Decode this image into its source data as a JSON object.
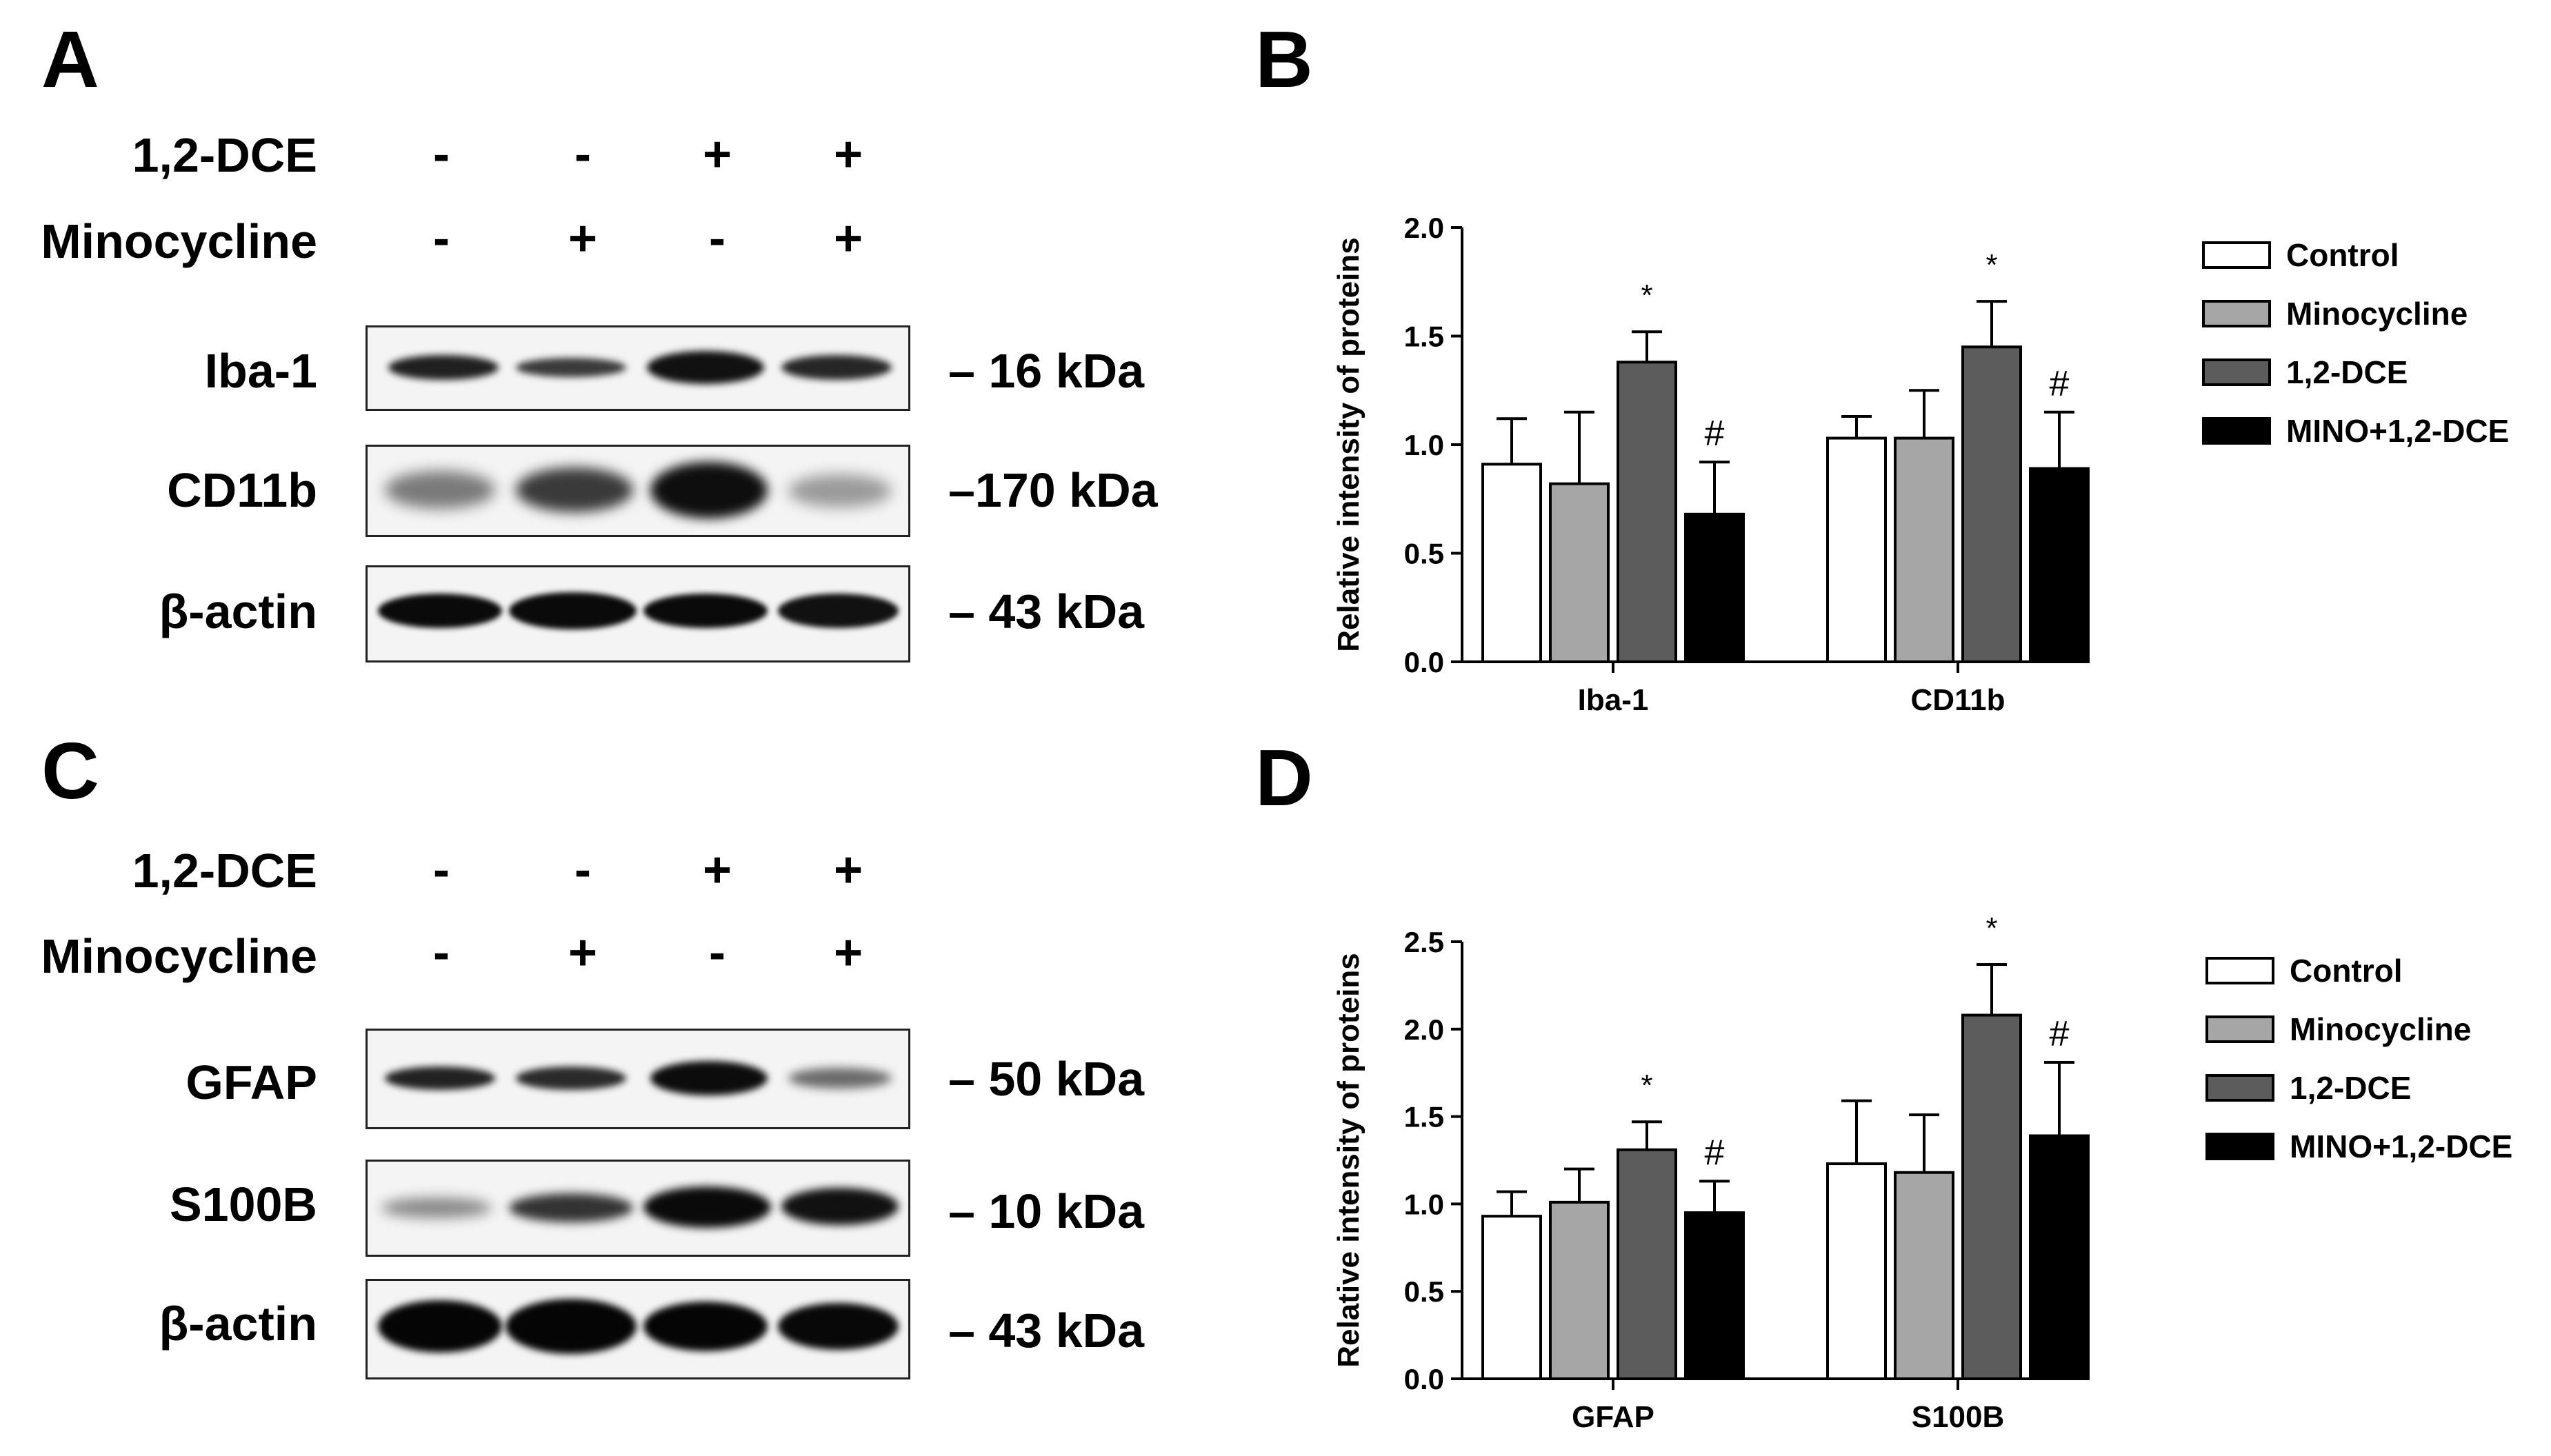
{
  "panels": {
    "A": {
      "letter": "A",
      "treatments": [
        {
          "label": "1,2-DCE",
          "signs": [
            "-",
            "-",
            "+",
            "+"
          ]
        },
        {
          "label": "Minocycline",
          "signs": [
            "-",
            "+",
            "-",
            "+"
          ]
        }
      ],
      "blots": [
        {
          "protein": "Iba-1",
          "size": "– 16 kDa"
        },
        {
          "protein": "CD11b",
          "size": "–170 kDa"
        },
        {
          "protein": "β-actin",
          "size": "– 43 kDa"
        }
      ]
    },
    "B": {
      "letter": "B"
    },
    "C": {
      "letter": "C",
      "treatments": [
        {
          "label": "1,2-DCE",
          "signs": [
            "-",
            "-",
            "+",
            "+"
          ]
        },
        {
          "label": "Minocycline",
          "signs": [
            "-",
            "+",
            "-",
            "+"
          ]
        }
      ],
      "blots": [
        {
          "protein": "GFAP",
          "size": "– 50 kDa"
        },
        {
          "protein": "S100B",
          "size": "– 10 kDa"
        },
        {
          "protein": "β-actin",
          "size": "– 43 kDa"
        }
      ]
    },
    "D": {
      "letter": "D"
    }
  },
  "colors": {
    "Control": "#ffffff",
    "Minocycline": "#a6a6a6",
    "1,2-DCE": "#5c5c5c",
    "MINO+1,2-DCE": "#000000"
  },
  "chart_data": [
    {
      "panel": "B",
      "type": "bar",
      "ylabel": "Relative intensity of proteins",
      "xlabel": "",
      "ylim": [
        0,
        2.0
      ],
      "yticks": [
        "0.0",
        "0.5",
        "1.0",
        "1.5",
        "2.0"
      ],
      "categories": [
        "Iba-1",
        "CD11b"
      ],
      "legend": "right",
      "series": [
        {
          "name": "Control",
          "values": [
            0.91,
            1.03
          ],
          "errors": [
            0.21,
            0.1
          ]
        },
        {
          "name": "Minocycline",
          "values": [
            0.82,
            1.03
          ],
          "errors": [
            0.33,
            0.22
          ]
        },
        {
          "name": "1,2-DCE",
          "values": [
            1.38,
            1.45
          ],
          "errors": [
            0.14,
            0.21
          ]
        },
        {
          "name": "MINO+1,2-DCE",
          "values": [
            0.68,
            0.89
          ],
          "errors": [
            0.24,
            0.26
          ]
        }
      ],
      "annotations": [
        {
          "category": "Iba-1",
          "series": "1,2-DCE",
          "text": "*"
        },
        {
          "category": "Iba-1",
          "series": "MINO+1,2-DCE",
          "text": "#"
        },
        {
          "category": "CD11b",
          "series": "1,2-DCE",
          "text": "*"
        },
        {
          "category": "CD11b",
          "series": "MINO+1,2-DCE",
          "text": "#"
        }
      ]
    },
    {
      "panel": "D",
      "type": "bar",
      "ylabel": "Relative intensity of proteins",
      "xlabel": "",
      "ylim": [
        0,
        2.5
      ],
      "yticks": [
        "0.0",
        "0.5",
        "1.0",
        "1.5",
        "2.0",
        "2.5"
      ],
      "categories": [
        "GFAP",
        "S100B"
      ],
      "legend": "right",
      "series": [
        {
          "name": "Control",
          "values": [
            0.93,
            1.23
          ],
          "errors": [
            0.14,
            0.36
          ]
        },
        {
          "name": "Minocycline",
          "values": [
            1.01,
            1.18
          ],
          "errors": [
            0.19,
            0.33
          ]
        },
        {
          "name": "1,2-DCE",
          "values": [
            1.31,
            2.08
          ],
          "errors": [
            0.16,
            0.29
          ]
        },
        {
          "name": "MINO+1,2-DCE",
          "values": [
            0.95,
            1.39
          ],
          "errors": [
            0.18,
            0.42
          ]
        }
      ],
      "annotations": [
        {
          "category": "GFAP",
          "series": "1,2-DCE",
          "text": "*"
        },
        {
          "category": "GFAP",
          "series": "MINO+1,2-DCE",
          "text": "#"
        },
        {
          "category": "S100B",
          "series": "1,2-DCE",
          "text": "*"
        },
        {
          "category": "S100B",
          "series": "MINO+1,2-DCE",
          "text": "#"
        }
      ]
    }
  ]
}
